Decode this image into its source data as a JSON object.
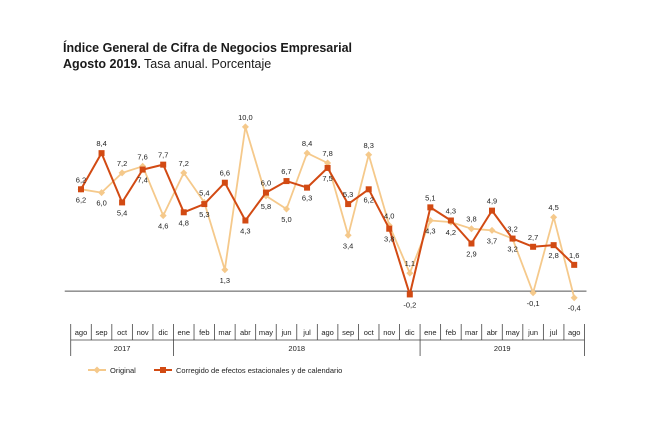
{
  "header": {
    "title": "Índice General de Cifra de Negocios Empresarial",
    "subtitle_bold": "Agosto 2019.",
    "subtitle_rest": " Tasa anual. Porcentaje"
  },
  "colors": {
    "original": "#f5c98b",
    "corrected": "#d24a13",
    "axis": "#555555"
  },
  "chart_data": {
    "type": "line",
    "title": "Índice General de Cifra de Negocios Empresarial",
    "categories": [
      "ago",
      "sep",
      "oct",
      "nov",
      "dic",
      "ene",
      "feb",
      "mar",
      "abr",
      "may",
      "jun",
      "jul",
      "ago",
      "sep",
      "oct",
      "nov",
      "dic",
      "ene",
      "feb",
      "mar",
      "abr",
      "may",
      "jun",
      "jul",
      "ago"
    ],
    "years": [
      {
        "label": "2017",
        "start": 0,
        "end": 4
      },
      {
        "label": "2018",
        "start": 5,
        "end": 16
      },
      {
        "label": "2019",
        "start": 17,
        "end": 24
      }
    ],
    "series": [
      {
        "name": "Original",
        "color": "#f5c98b",
        "marker": "diamond",
        "values": [
          6.2,
          6.0,
          7.2,
          7.6,
          4.6,
          7.2,
          5.4,
          1.3,
          10.0,
          5.8,
          5.0,
          8.4,
          7.8,
          3.4,
          8.3,
          4.0,
          1.1,
          4.3,
          4.2,
          3.8,
          3.7,
          3.2,
          -0.1,
          4.5,
          -0.4
        ],
        "labels": [
          "6,2",
          "6,0",
          "7,2",
          "7,6",
          "4,6",
          "7,2",
          "5,4",
          "1,3",
          "10,0",
          "5,8",
          "5,0",
          "8,4",
          "7,8",
          "3,4",
          "8,3",
          "4,0",
          "1,1",
          "4,3",
          "4,2",
          "3,8",
          "3,7",
          "3,2",
          "-0,1",
          "4,5",
          "-0,4"
        ]
      },
      {
        "name": "Corregido de efectos estacionales y de calendario",
        "color": "#d24a13",
        "marker": "square",
        "values": [
          6.2,
          8.4,
          5.4,
          7.4,
          7.7,
          4.8,
          5.3,
          6.6,
          4.3,
          6.0,
          6.7,
          6.3,
          7.5,
          5.3,
          6.2,
          3.8,
          -0.2,
          5.1,
          4.3,
          2.9,
          4.9,
          3.2,
          2.7,
          2.8,
          1.6
        ],
        "labels": [
          "6,2",
          "8,4",
          "5,4",
          "7,4",
          "7,7",
          "4,8",
          "5,3",
          "6,6",
          "4,3",
          "6,0",
          "6,7",
          "6,3",
          "7,5",
          "5,3",
          "6,2",
          "3,8",
          "-0,2",
          "5,1",
          "4,3",
          "2,9",
          "4,9",
          "3,2",
          "2,7",
          "2,8",
          "1,6"
        ]
      }
    ],
    "ylim": [
      -0.6,
      10.6
    ],
    "legend_position": "bottom-left"
  }
}
